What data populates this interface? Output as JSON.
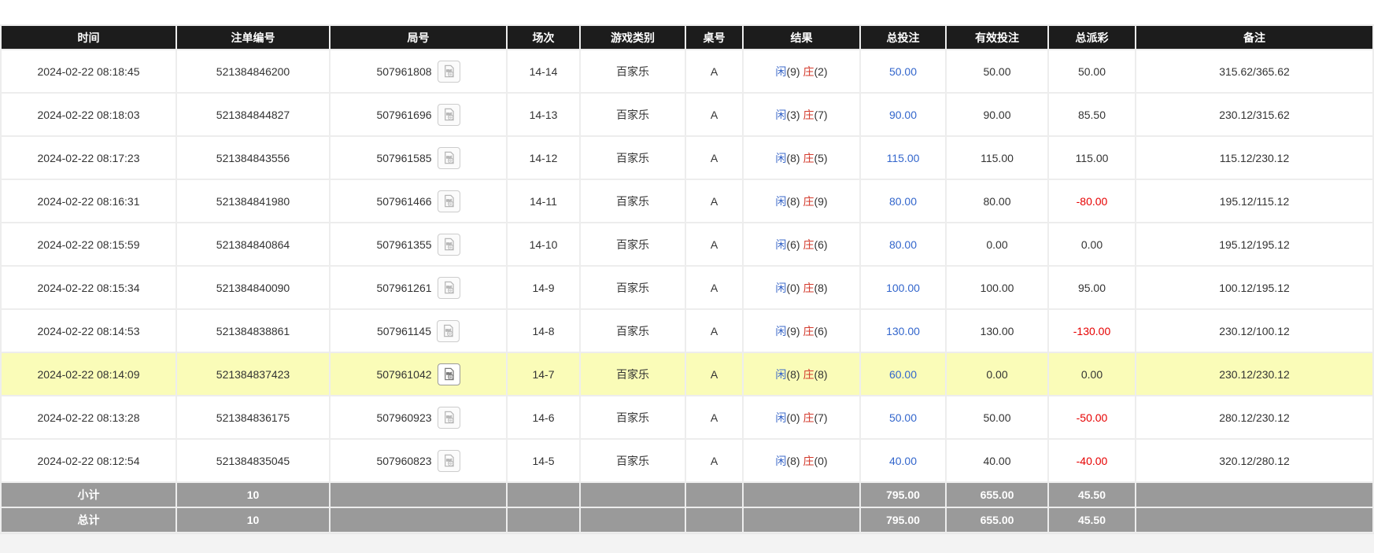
{
  "colors": {
    "player": "#3a67c8",
    "banker": "#d3392b",
    "bet_link": "#3366cc",
    "negative": "#e60000",
    "header_bg": "#1c1c1c",
    "footer_bg": "#9a9a9a",
    "highlight_bg": "#fafcb8"
  },
  "icons": {
    "video_replay": "film-reel-video-camera"
  },
  "table": {
    "columns": [
      {
        "key": "time",
        "label": "时间"
      },
      {
        "key": "bet_no",
        "label": "注单编号"
      },
      {
        "key": "round_no",
        "label": "局号"
      },
      {
        "key": "session",
        "label": "场次"
      },
      {
        "key": "game",
        "label": "游戏类别"
      },
      {
        "key": "table_no",
        "label": "桌号"
      },
      {
        "key": "result",
        "label": "结果"
      },
      {
        "key": "total_bet",
        "label": "总投注"
      },
      {
        "key": "valid_bet",
        "label": "有效投注"
      },
      {
        "key": "payout",
        "label": "总派彩"
      },
      {
        "key": "remark",
        "label": "备注"
      }
    ],
    "result_labels": {
      "player": "闲",
      "banker": "庄"
    },
    "rows": [
      {
        "time": "2024-02-22 08:18:45",
        "bet_no": "521384846200",
        "round_no": "507961808",
        "session": "14-14",
        "game": "百家乐",
        "table_no": "A",
        "player": "9",
        "banker": "2",
        "total_bet": "50.00",
        "valid_bet": "50.00",
        "payout": "50.00",
        "remark": "315.62/365.62",
        "highlighted": false
      },
      {
        "time": "2024-02-22 08:18:03",
        "bet_no": "521384844827",
        "round_no": "507961696",
        "session": "14-13",
        "game": "百家乐",
        "table_no": "A",
        "player": "3",
        "banker": "7",
        "total_bet": "90.00",
        "valid_bet": "90.00",
        "payout": "85.50",
        "remark": "230.12/315.62",
        "highlighted": false
      },
      {
        "time": "2024-02-22 08:17:23",
        "bet_no": "521384843556",
        "round_no": "507961585",
        "session": "14-12",
        "game": "百家乐",
        "table_no": "A",
        "player": "8",
        "banker": "5",
        "total_bet": "115.00",
        "valid_bet": "115.00",
        "payout": "115.00",
        "remark": "115.12/230.12",
        "highlighted": false
      },
      {
        "time": "2024-02-22 08:16:31",
        "bet_no": "521384841980",
        "round_no": "507961466",
        "session": "14-11",
        "game": "百家乐",
        "table_no": "A",
        "player": "8",
        "banker": "9",
        "total_bet": "80.00",
        "valid_bet": "80.00",
        "payout": "-80.00",
        "remark": "195.12/115.12",
        "highlighted": false
      },
      {
        "time": "2024-02-22 08:15:59",
        "bet_no": "521384840864",
        "round_no": "507961355",
        "session": "14-10",
        "game": "百家乐",
        "table_no": "A",
        "player": "6",
        "banker": "6",
        "total_bet": "80.00",
        "valid_bet": "0.00",
        "payout": "0.00",
        "remark": "195.12/195.12",
        "highlighted": false
      },
      {
        "time": "2024-02-22 08:15:34",
        "bet_no": "521384840090",
        "round_no": "507961261",
        "session": "14-9",
        "game": "百家乐",
        "table_no": "A",
        "player": "0",
        "banker": "8",
        "total_bet": "100.00",
        "valid_bet": "100.00",
        "payout": "95.00",
        "remark": "100.12/195.12",
        "highlighted": false
      },
      {
        "time": "2024-02-22 08:14:53",
        "bet_no": "521384838861",
        "round_no": "507961145",
        "session": "14-8",
        "game": "百家乐",
        "table_no": "A",
        "player": "9",
        "banker": "6",
        "total_bet": "130.00",
        "valid_bet": "130.00",
        "payout": "-130.00",
        "remark": "230.12/100.12",
        "highlighted": false
      },
      {
        "time": "2024-02-22 08:14:09",
        "bet_no": "521384837423",
        "round_no": "507961042",
        "session": "14-7",
        "game": "百家乐",
        "table_no": "A",
        "player": "8",
        "banker": "8",
        "total_bet": "60.00",
        "valid_bet": "0.00",
        "payout": "0.00",
        "remark": "230.12/230.12",
        "highlighted": true
      },
      {
        "time": "2024-02-22 08:13:28",
        "bet_no": "521384836175",
        "round_no": "507960923",
        "session": "14-6",
        "game": "百家乐",
        "table_no": "A",
        "player": "0",
        "banker": "7",
        "total_bet": "50.00",
        "valid_bet": "50.00",
        "payout": "-50.00",
        "remark": "280.12/230.12",
        "highlighted": false
      },
      {
        "time": "2024-02-22 08:12:54",
        "bet_no": "521384835045",
        "round_no": "507960823",
        "session": "14-5",
        "game": "百家乐",
        "table_no": "A",
        "player": "8",
        "banker": "0",
        "total_bet": "40.00",
        "valid_bet": "40.00",
        "payout": "-40.00",
        "remark": "320.12/280.12",
        "highlighted": false
      }
    ],
    "summary_rows": [
      {
        "label": "小计",
        "count": "10",
        "total_bet": "795.00",
        "valid_bet": "655.00",
        "payout": "45.50"
      },
      {
        "label": "总计",
        "count": "10",
        "total_bet": "795.00",
        "valid_bet": "655.00",
        "payout": "45.50"
      }
    ]
  }
}
